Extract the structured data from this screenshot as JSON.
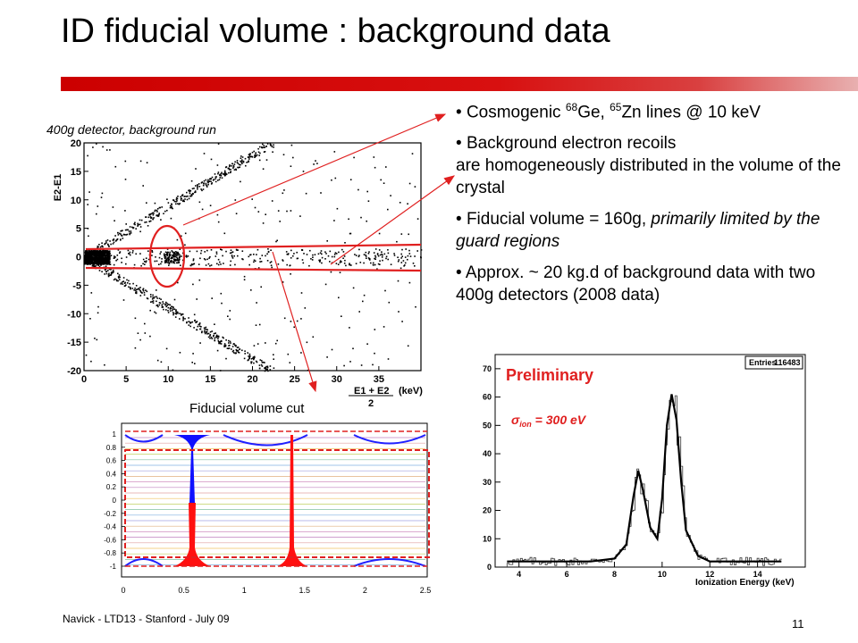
{
  "slide": {
    "title": "ID fiducial volume : background data",
    "footer": "Navick - LTD13 - Stanford - July 09",
    "page_number": "11",
    "accent_color": "#cc0000"
  },
  "scatter": {
    "caption": "400g detector, background run",
    "xlabel_num": "E1 + E2",
    "xlabel_unit": "(keV)",
    "xlabel_den": "2",
    "ylabel": "E2-E1"
  },
  "bullets": {
    "b1_pre": "Cosmogenic ",
    "b1_sup1": "68",
    "b1_mid": "Ge, ",
    "b1_sup2": "65",
    "b1_post": "Zn lines @ 10 keV",
    "b2_line1": "Background electron recoils",
    "b2_line2": "are homogeneously distributed in the volume of the crystal",
    "b3_pre": "Fiducial volume = 160g, ",
    "b3_italic": "primarily limited by the guard regions",
    "b4": "Approx. ~ 20 kg.d of background data with two 400g detectors (2008 data)"
  },
  "field_map": {
    "cut_label": "Fiducial volume cut",
    "yticks": [
      "0.8",
      "0.6",
      "0.4",
      "0.2",
      "0",
      "-0.2",
      "-0.4",
      "-0.6",
      "-0.8",
      "-1"
    ],
    "ytick_top": "1",
    "xticks": [
      "0",
      "0.5",
      "1",
      "1.5",
      "2",
      "2.5"
    ]
  },
  "histogram": {
    "entries_label": "Entries",
    "entries_value": "116483",
    "preliminary": "Preliminary",
    "sigma_symbol": "σ",
    "sigma_sub": "ion",
    "sigma_value": " = 300 eV",
    "xlabel": "Ionization Energy (keV)"
  },
  "chart_data": [
    {
      "type": "scatter",
      "title": "400g detector, background run",
      "xlabel": "E1 + E2 / 2 (keV)",
      "ylabel": "E2-E1",
      "xlim": [
        0,
        40
      ],
      "ylim": [
        -20,
        20
      ],
      "xticks": [
        "0",
        "5",
        "10",
        "15",
        "20",
        "25",
        "30",
        "35"
      ],
      "yticks": [
        "20",
        "15",
        "10",
        "5",
        "0",
        "-5",
        "-10",
        "-15",
        "-20"
      ],
      "features": [
        "dense band near E2-E1 = 0",
        "V-shaped guard-region branches",
        "cluster near 10 keV"
      ]
    },
    {
      "type": "line",
      "title": "",
      "xlabel": "Ionization Energy (keV)",
      "ylabel": "",
      "xlim": [
        3,
        16
      ],
      "ylim": [
        0,
        75
      ],
      "xticks": [
        "4",
        "6",
        "8",
        "10",
        "12",
        "14"
      ],
      "yticks": [
        "0",
        "10",
        "20",
        "30",
        "40",
        "50",
        "60",
        "70"
      ],
      "series": [
        {
          "x": [
            3.5,
            4,
            5,
            6,
            7,
            8,
            8.5,
            8.8,
            9.0,
            9.2,
            9.5,
            9.8,
            10.0,
            10.2,
            10.4,
            10.6,
            10.8,
            11.0,
            11.5,
            12,
            13,
            14,
            15
          ],
          "y": [
            2,
            2,
            2,
            2,
            2,
            3,
            8,
            25,
            34,
            27,
            14,
            10,
            24,
            50,
            61,
            52,
            30,
            13,
            4,
            2,
            2,
            2,
            2
          ]
        }
      ]
    }
  ]
}
